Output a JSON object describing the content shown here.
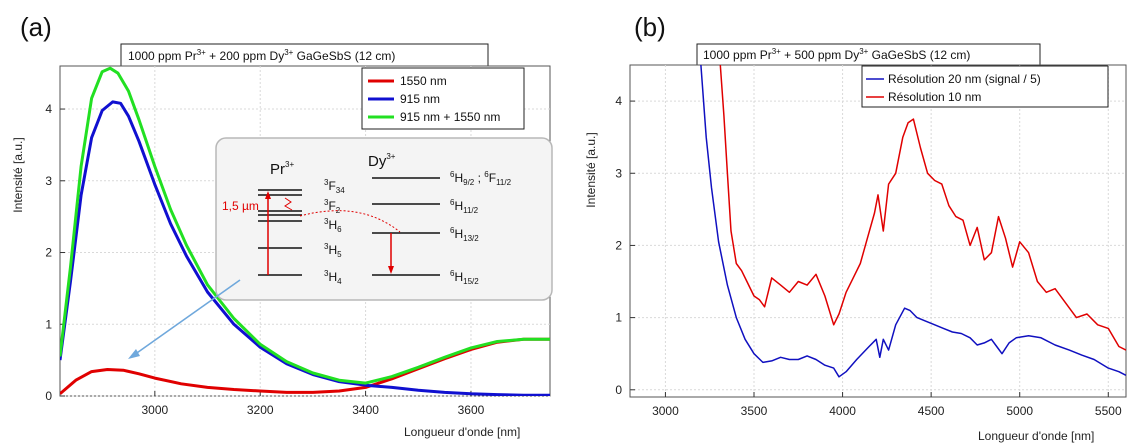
{
  "chart_data": [
    {
      "type": "line",
      "panel_label": "(a)",
      "title": {
        "prefix": "1000 ppm Pr",
        "sup1": "3+",
        "mid": " + 200 ppm Dy",
        "sup2": "3+",
        "suffix": " GaGeSbS (12 cm)"
      },
      "xlabel": "Longueur d'onde [nm]",
      "ylabel": "Intensité [a.u.]",
      "xlim": [
        2820,
        3750
      ],
      "ylim": [
        0,
        4.6
      ],
      "xticks": [
        3000,
        3200,
        3400,
        3600
      ],
      "yticks": [
        0,
        1,
        2,
        3,
        4
      ],
      "legend_position": "top-right",
      "series": [
        {
          "name": "1550 nm",
          "color": "#e00000",
          "x": [
            2820,
            2850,
            2880,
            2910,
            2940,
            2970,
            3000,
            3050,
            3100,
            3150,
            3200,
            3250,
            3300,
            3350,
            3400,
            3450,
            3500,
            3550,
            3600,
            3650,
            3700,
            3750
          ],
          "y": [
            0.03,
            0.22,
            0.34,
            0.37,
            0.36,
            0.31,
            0.25,
            0.17,
            0.12,
            0.09,
            0.07,
            0.05,
            0.05,
            0.07,
            0.12,
            0.24,
            0.38,
            0.52,
            0.65,
            0.75,
            0.79,
            0.79
          ]
        },
        {
          "name": "915 nm",
          "color": "#1010d0",
          "x": [
            2820,
            2840,
            2860,
            2880,
            2900,
            2920,
            2935,
            2950,
            2970,
            3000,
            3030,
            3060,
            3100,
            3150,
            3200,
            3250,
            3300,
            3350,
            3400,
            3450,
            3500,
            3550,
            3600,
            3650,
            3700,
            3750
          ],
          "y": [
            0.5,
            1.6,
            2.8,
            3.6,
            3.98,
            4.1,
            4.08,
            3.9,
            3.55,
            2.95,
            2.4,
            1.95,
            1.45,
            1.0,
            0.68,
            0.45,
            0.3,
            0.2,
            0.15,
            0.12,
            0.08,
            0.05,
            0.03,
            0.02,
            0.01,
            0.01
          ]
        },
        {
          "name": "915 nm + 1550 nm",
          "color": "#22e022",
          "x": [
            2820,
            2840,
            2860,
            2880,
            2900,
            2915,
            2930,
            2950,
            2970,
            3000,
            3030,
            3060,
            3100,
            3150,
            3200,
            3250,
            3300,
            3350,
            3400,
            3450,
            3500,
            3550,
            3600,
            3650,
            3700,
            3750
          ],
          "y": [
            0.55,
            1.8,
            3.2,
            4.15,
            4.52,
            4.57,
            4.5,
            4.25,
            3.85,
            3.2,
            2.6,
            2.1,
            1.55,
            1.08,
            0.72,
            0.48,
            0.32,
            0.22,
            0.18,
            0.27,
            0.4,
            0.54,
            0.67,
            0.76,
            0.79,
            0.79
          ]
        }
      ],
      "inset": {
        "left_header": {
          "base": "Pr",
          "sup": "3+"
        },
        "right_header": {
          "base": "Dy",
          "sup": "3+"
        },
        "pr_labels": [
          {
            "sup": "3",
            "base": "F",
            "sub": "34"
          },
          {
            "sup": "3",
            "base": "F",
            "sub": "2"
          },
          {
            "sup": "3",
            "base": "H",
            "sub": "6"
          },
          {
            "sup": "3",
            "base": "H",
            "sub": "5"
          },
          {
            "sup": "3",
            "base": "H",
            "sub": "4"
          }
        ],
        "dy_labels": [
          {
            "sup": "6",
            "base": "H",
            "sub": "9/2",
            "extra_sup": "6",
            "extra_base": "F",
            "extra_sub": "11/2"
          },
          {
            "sup": "6",
            "base": "H",
            "sub": "11/2"
          },
          {
            "sup": "6",
            "base": "H",
            "sub": "13/2"
          },
          {
            "sup": "6",
            "base": "H",
            "sub": "15/2"
          }
        ],
        "transition_label": "1,5 µm"
      }
    },
    {
      "type": "line",
      "panel_label": "(b)",
      "title": {
        "prefix": "1000 ppm Pr",
        "sup1": "3+",
        "mid": " + 500 ppm Dy",
        "sup2": "3+",
        "suffix": " GaGeSbS (12 cm)"
      },
      "xlabel": "Longueur d'onde [nm]",
      "ylabel": "Intensité [a.u.]",
      "xlim": [
        2800,
        5600
      ],
      "ylim": [
        -0.1,
        4.5
      ],
      "xticks": [
        3000,
        3500,
        4000,
        4500,
        5000,
        5500
      ],
      "yticks": [
        0,
        1,
        2,
        3,
        4
      ],
      "legend_position": "top-right",
      "series": [
        {
          "name": "Résolution 20 nm (signal / 5)",
          "color": "#1010c0",
          "x": [
            3200,
            3230,
            3260,
            3300,
            3350,
            3400,
            3450,
            3500,
            3550,
            3600,
            3650,
            3700,
            3750,
            3800,
            3850,
            3900,
            3950,
            3980,
            4020,
            4080,
            4150,
            4190,
            4210,
            4230,
            4260,
            4300,
            4350,
            4380,
            4420,
            4470,
            4520,
            4570,
            4620,
            4670,
            4720,
            4760,
            4800,
            4840,
            4870,
            4900,
            4940,
            4980,
            5050,
            5120,
            5200,
            5280,
            5350,
            5420,
            5500,
            5560,
            5600
          ],
          "y": [
            4.5,
            3.5,
            2.8,
            2.05,
            1.45,
            1.0,
            0.7,
            0.5,
            0.38,
            0.4,
            0.45,
            0.42,
            0.42,
            0.47,
            0.42,
            0.34,
            0.3,
            0.18,
            0.25,
            0.42,
            0.6,
            0.7,
            0.45,
            0.7,
            0.55,
            0.9,
            1.13,
            1.1,
            1.0,
            0.95,
            0.9,
            0.85,
            0.8,
            0.78,
            0.72,
            0.62,
            0.65,
            0.7,
            0.6,
            0.5,
            0.65,
            0.72,
            0.75,
            0.72,
            0.62,
            0.55,
            0.48,
            0.42,
            0.3,
            0.25,
            0.2
          ]
        },
        {
          "name": "Résolution 10 nm",
          "color": "#e00000",
          "x": [
            3310,
            3330,
            3350,
            3370,
            3400,
            3430,
            3460,
            3500,
            3530,
            3560,
            3600,
            3650,
            3700,
            3750,
            3800,
            3850,
            3900,
            3950,
            3980,
            4020,
            4060,
            4100,
            4140,
            4180,
            4200,
            4230,
            4260,
            4300,
            4340,
            4370,
            4400,
            4440,
            4480,
            4520,
            4560,
            4600,
            4640,
            4680,
            4720,
            4760,
            4800,
            4840,
            4880,
            4920,
            4960,
            5000,
            5050,
            5100,
            5150,
            5200,
            5260,
            5320,
            5380,
            5440,
            5500,
            5560,
            5600
          ],
          "y": [
            4.5,
            3.8,
            3.0,
            2.2,
            1.75,
            1.65,
            1.5,
            1.3,
            1.25,
            1.15,
            1.55,
            1.45,
            1.35,
            1.5,
            1.45,
            1.6,
            1.3,
            0.9,
            1.05,
            1.35,
            1.55,
            1.75,
            2.1,
            2.45,
            2.7,
            2.2,
            2.85,
            3.0,
            3.5,
            3.7,
            3.75,
            3.35,
            3.0,
            2.9,
            2.85,
            2.55,
            2.4,
            2.35,
            2.0,
            2.25,
            1.8,
            1.9,
            2.4,
            2.1,
            1.7,
            2.05,
            1.9,
            1.5,
            1.35,
            1.4,
            1.2,
            1.0,
            1.05,
            0.9,
            0.85,
            0.6,
            0.55
          ]
        }
      ]
    }
  ]
}
